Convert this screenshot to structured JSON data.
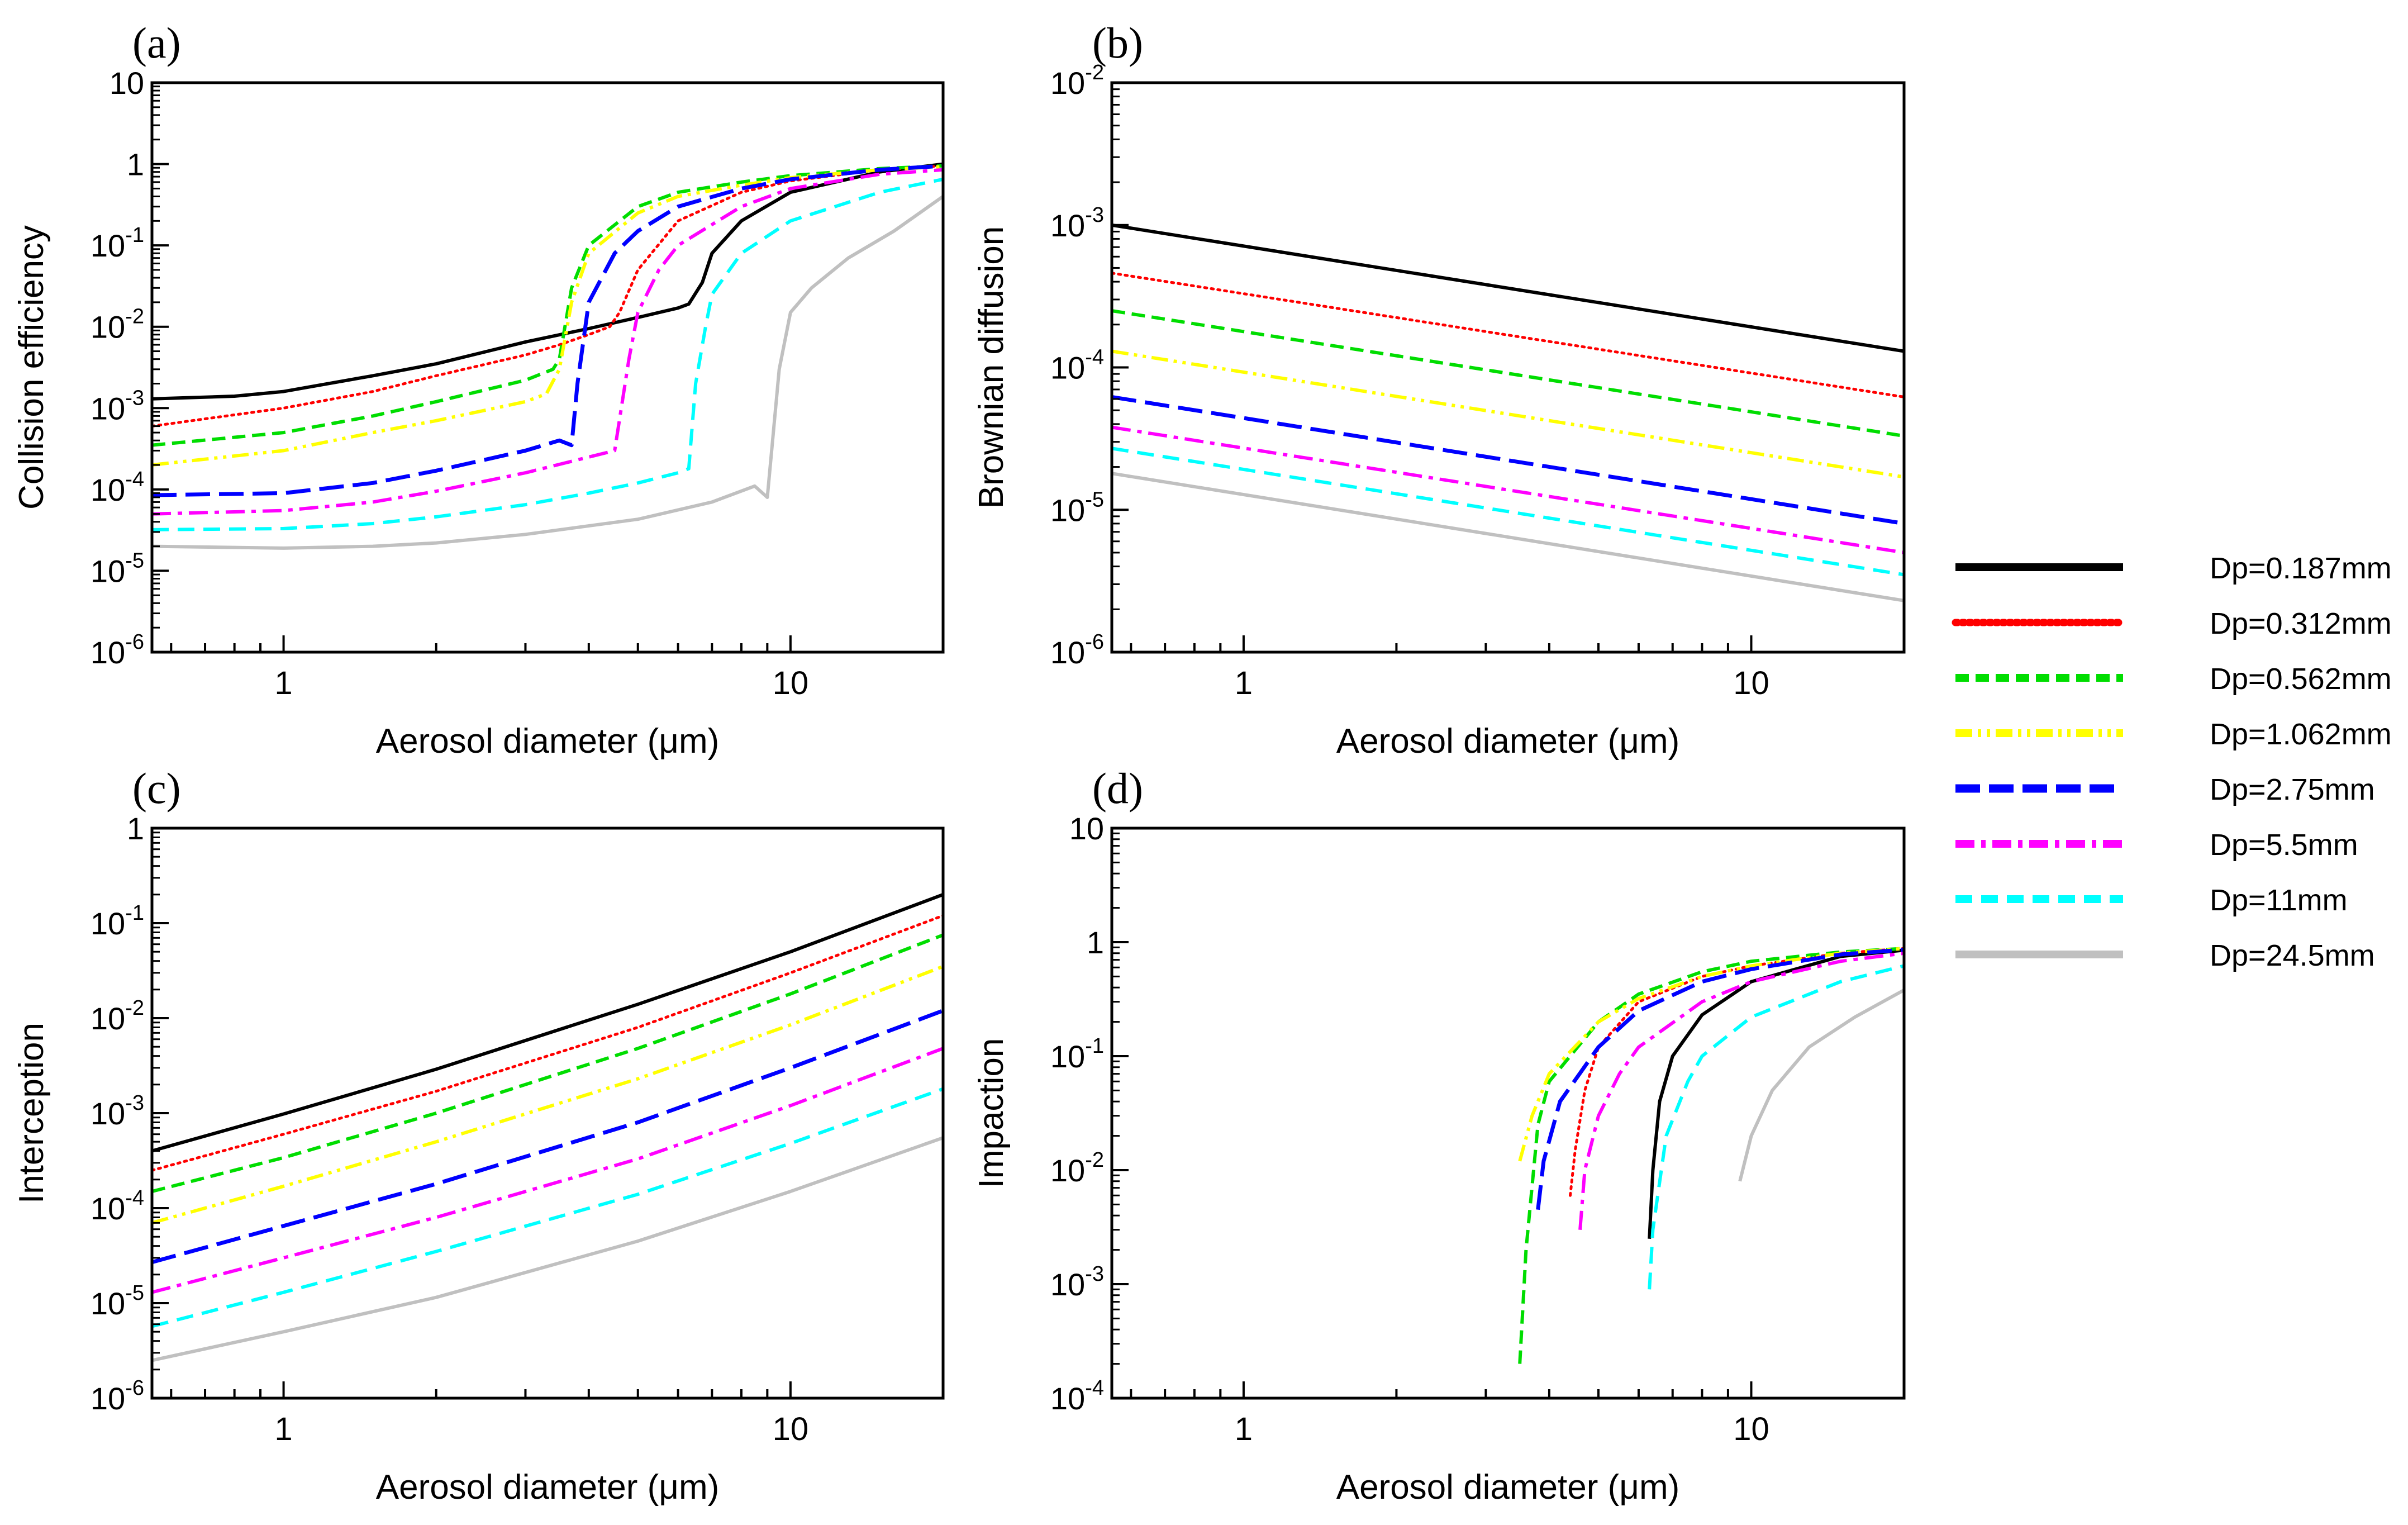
{
  "figure": {
    "x_axis_label": "Aerosol diameter (μm)",
    "x_tick_labels": [
      "1",
      "10"
    ],
    "x_range": [
      0.55,
      20
    ]
  },
  "legend": [
    {
      "label": "Dp=0.187mm",
      "color": "#000000",
      "style": "solid"
    },
    {
      "label": "Dp=0.312mm",
      "color": "#ff0000",
      "style": "dotted"
    },
    {
      "label": "Dp=0.562mm",
      "color": "#00dd00",
      "style": "dashed"
    },
    {
      "label": "Dp=1.062mm",
      "color": "#ffff00",
      "style": "dashdotdot"
    },
    {
      "label": "Dp=2.75mm",
      "color": "#0000ff",
      "style": "longdash"
    },
    {
      "label": "Dp=5.5mm",
      "color": "#ff00ff",
      "style": "dashdot"
    },
    {
      "label": "Dp=11mm",
      "color": "#00ffff",
      "style": "medium-dash"
    },
    {
      "label": "Dp=24.5mm",
      "color": "#c0c0c0",
      "style": "solid"
    }
  ],
  "chart_data": [
    {
      "panel_label": "(a)",
      "type": "line",
      "xscale": "log",
      "yscale": "log",
      "xlim": [
        0.55,
        20
      ],
      "ylim": [
        1e-06,
        10
      ],
      "xlabel": "Aerosol diameter (μm)",
      "ylabel": "Collision efficiency",
      "y_ticks": [
        {
          "base": "10",
          "exp": "-6"
        },
        {
          "base": "10",
          "exp": "-5"
        },
        {
          "base": "10",
          "exp": "-4"
        },
        {
          "base": "10",
          "exp": "-3"
        },
        {
          "base": "10",
          "exp": "-2"
        },
        {
          "base": "10",
          "exp": "-1"
        },
        {
          "base": "1",
          "exp": ""
        },
        {
          "base": "10",
          "exp": ""
        }
      ],
      "series": [
        {
          "name": "Dp=0.187mm",
          "x": [
            0.55,
            0.8,
            1,
            1.5,
            2,
            3,
            4,
            5,
            6,
            6.3,
            6.7,
            7,
            8,
            10,
            15,
            20
          ],
          "y": [
            0.0013,
            0.0014,
            0.0016,
            0.0025,
            0.0035,
            0.0065,
            0.0095,
            0.013,
            0.017,
            0.019,
            0.035,
            0.08,
            0.2,
            0.45,
            0.8,
            1.0
          ]
        },
        {
          "name": "Dp=0.312mm",
          "x": [
            0.55,
            1,
            1.5,
            2,
            3,
            3.5,
            4,
            4.4,
            4.6,
            5,
            6,
            8,
            10,
            15,
            20
          ],
          "y": [
            0.0006,
            0.001,
            0.0016,
            0.0025,
            0.0045,
            0.006,
            0.008,
            0.01,
            0.015,
            0.05,
            0.2,
            0.45,
            0.62,
            0.85,
            0.95
          ]
        },
        {
          "name": "Dp=0.562mm",
          "x": [
            0.55,
            1,
            1.5,
            2,
            3,
            3.4,
            3.5,
            3.7,
            4,
            5,
            6,
            8,
            10,
            15,
            20
          ],
          "y": [
            0.00035,
            0.0005,
            0.0008,
            0.0012,
            0.0022,
            0.003,
            0.004,
            0.03,
            0.1,
            0.3,
            0.45,
            0.6,
            0.72,
            0.88,
            0.95
          ]
        },
        {
          "name": "Dp=1.062mm",
          "x": [
            0.55,
            1,
            1.5,
            2,
            3,
            3.3,
            3.5,
            3.7,
            4,
            5,
            6,
            8,
            10,
            15,
            20
          ],
          "y": [
            0.0002,
            0.0003,
            0.0005,
            0.0007,
            0.0012,
            0.0015,
            0.003,
            0.02,
            0.08,
            0.25,
            0.4,
            0.55,
            0.68,
            0.85,
            0.93
          ]
        },
        {
          "name": "Dp=2.75mm",
          "x": [
            0.55,
            1,
            1.5,
            2,
            3,
            3.5,
            3.7,
            3.8,
            4,
            4.5,
            5,
            6,
            8,
            10,
            15,
            20
          ],
          "y": [
            8.5e-05,
            9e-05,
            0.00012,
            0.00017,
            0.0003,
            0.0004,
            0.00035,
            0.002,
            0.02,
            0.08,
            0.15,
            0.3,
            0.5,
            0.65,
            0.85,
            0.95
          ]
        },
        {
          "name": "Dp=5.5mm",
          "x": [
            0.55,
            1,
            1.5,
            2,
            3,
            4,
            4.5,
            4.8,
            5,
            5.5,
            6,
            8,
            10,
            15,
            20
          ],
          "y": [
            5e-05,
            5.5e-05,
            7e-05,
            9.5e-05,
            0.00016,
            0.00025,
            0.0003,
            0.004,
            0.015,
            0.05,
            0.1,
            0.3,
            0.5,
            0.75,
            0.85
          ]
        },
        {
          "name": "Dp=11mm",
          "x": [
            0.55,
            1,
            1.5,
            2,
            3,
            4,
            5,
            6,
            6.3,
            6.5,
            6.8,
            7,
            8,
            10,
            15,
            20
          ],
          "y": [
            3.2e-05,
            3.3e-05,
            3.8e-05,
            4.6e-05,
            6.5e-05,
            9e-05,
            0.00012,
            0.00016,
            0.00018,
            0.002,
            0.01,
            0.025,
            0.08,
            0.2,
            0.45,
            0.65
          ]
        },
        {
          "name": "Dp=24.5mm",
          "x": [
            0.55,
            1,
            1.5,
            2,
            3,
            5,
            7,
            8.5,
            9,
            9.5,
            10,
            11,
            13,
            16,
            20
          ],
          "y": [
            2e-05,
            1.9e-05,
            2e-05,
            2.2e-05,
            2.8e-05,
            4.3e-05,
            7e-05,
            0.00011,
            8e-05,
            0.003,
            0.015,
            0.03,
            0.07,
            0.15,
            0.4
          ]
        }
      ]
    },
    {
      "panel_label": "(b)",
      "type": "line",
      "xscale": "log",
      "yscale": "log",
      "xlim": [
        0.55,
        20
      ],
      "ylim": [
        1e-06,
        0.01
      ],
      "xlabel": "Aerosol diameter (μm)",
      "ylabel": "Brownian diffusion",
      "y_ticks": [
        {
          "base": "10",
          "exp": "-6"
        },
        {
          "base": "10",
          "exp": "-5"
        },
        {
          "base": "10",
          "exp": "-4"
        },
        {
          "base": "10",
          "exp": "-3"
        },
        {
          "base": "10",
          "exp": "-2"
        }
      ],
      "series": [
        {
          "name": "Dp=0.187mm",
          "x": [
            0.55,
            20
          ],
          "y": [
            0.001,
            0.00013
          ]
        },
        {
          "name": "Dp=0.312mm",
          "x": [
            0.55,
            20
          ],
          "y": [
            0.00046,
            6.2e-05
          ]
        },
        {
          "name": "Dp=0.562mm",
          "x": [
            0.55,
            20
          ],
          "y": [
            0.00025,
            3.3e-05
          ]
        },
        {
          "name": "Dp=1.062mm",
          "x": [
            0.55,
            20
          ],
          "y": [
            0.00013,
            1.7e-05
          ]
        },
        {
          "name": "Dp=2.75mm",
          "x": [
            0.55,
            20
          ],
          "y": [
            6.2e-05,
            8e-06
          ]
        },
        {
          "name": "Dp=5.5mm",
          "x": [
            0.55,
            20
          ],
          "y": [
            3.8e-05,
            5e-06
          ]
        },
        {
          "name": "Dp=11mm",
          "x": [
            0.55,
            20
          ],
          "y": [
            2.7e-05,
            3.5e-06
          ]
        },
        {
          "name": "Dp=24.5mm",
          "x": [
            0.55,
            20
          ],
          "y": [
            1.8e-05,
            2.3e-06
          ]
        }
      ]
    },
    {
      "panel_label": "(c)",
      "type": "line",
      "xscale": "log",
      "yscale": "log",
      "xlim": [
        0.55,
        20
      ],
      "ylim": [
        1e-06,
        1
      ],
      "xlabel": "Aerosol diameter (μm)",
      "ylabel": "Interception",
      "y_ticks": [
        {
          "base": "10",
          "exp": "-6"
        },
        {
          "base": "10",
          "exp": "-5"
        },
        {
          "base": "10",
          "exp": "-4"
        },
        {
          "base": "10",
          "exp": "-3"
        },
        {
          "base": "10",
          "exp": "-2"
        },
        {
          "base": "10",
          "exp": "-1"
        },
        {
          "base": "1",
          "exp": ""
        }
      ],
      "series": [
        {
          "name": "Dp=0.187mm",
          "x": [
            0.55,
            1,
            2,
            5,
            10,
            20
          ],
          "y": [
            0.0004,
            0.00098,
            0.0029,
            0.014,
            0.05,
            0.2
          ]
        },
        {
          "name": "Dp=0.312mm",
          "x": [
            0.55,
            1,
            2,
            5,
            10,
            20
          ],
          "y": [
            0.00025,
            0.0006,
            0.0017,
            0.008,
            0.03,
            0.12
          ]
        },
        {
          "name": "Dp=0.562mm",
          "x": [
            0.55,
            1,
            2,
            5,
            10,
            20
          ],
          "y": [
            0.00015,
            0.00034,
            0.001,
            0.0048,
            0.018,
            0.075
          ]
        },
        {
          "name": "Dp=1.062mm",
          "x": [
            0.55,
            1,
            2,
            5,
            10,
            20
          ],
          "y": [
            7e-05,
            0.00017,
            0.0005,
            0.0023,
            0.0085,
            0.035
          ]
        },
        {
          "name": "Dp=2.75mm",
          "x": [
            0.55,
            1,
            2,
            5,
            10,
            20
          ],
          "y": [
            2.7e-05,
            6.5e-05,
            0.00018,
            0.0008,
            0.003,
            0.012
          ]
        },
        {
          "name": "Dp=5.5mm",
          "x": [
            0.55,
            1,
            2,
            5,
            10,
            20
          ],
          "y": [
            1.3e-05,
            3e-05,
            8e-05,
            0.00033,
            0.0012,
            0.0048
          ]
        },
        {
          "name": "Dp=11mm",
          "x": [
            0.55,
            1,
            2,
            5,
            10,
            20
          ],
          "y": [
            5.7e-06,
            1.3e-05,
            3.5e-05,
            0.00014,
            0.00048,
            0.0018
          ]
        },
        {
          "name": "Dp=24.5mm",
          "x": [
            0.55,
            1,
            2,
            5,
            10,
            20
          ],
          "y": [
            2.5e-06,
            5e-06,
            1.15e-05,
            4.5e-05,
            0.00015,
            0.00055
          ]
        }
      ]
    },
    {
      "panel_label": "(d)",
      "type": "line",
      "xscale": "log",
      "yscale": "log",
      "xlim": [
        0.55,
        20
      ],
      "ylim": [
        0.0001,
        10
      ],
      "xlabel": "Aerosol diameter (μm)",
      "ylabel": "Impaction",
      "y_ticks": [
        {
          "base": "10",
          "exp": "-4"
        },
        {
          "base": "10",
          "exp": "-3"
        },
        {
          "base": "10",
          "exp": "-2"
        },
        {
          "base": "10",
          "exp": "-1"
        },
        {
          "base": "1",
          "exp": ""
        },
        {
          "base": "10",
          "exp": ""
        }
      ],
      "series": [
        {
          "name": "Dp=0.187mm",
          "x": [
            6.3,
            6.4,
            6.6,
            7,
            8,
            10,
            15,
            20
          ],
          "y": [
            0.0025,
            0.01,
            0.04,
            0.1,
            0.23,
            0.45,
            0.75,
            0.85
          ]
        },
        {
          "name": "Dp=0.312mm",
          "x": [
            4.4,
            4.5,
            4.7,
            5,
            6,
            8,
            10,
            15,
            20
          ],
          "y": [
            0.006,
            0.015,
            0.05,
            0.12,
            0.3,
            0.5,
            0.62,
            0.8,
            0.88
          ]
        },
        {
          "name": "Dp=0.562mm",
          "x": [
            3.5,
            3.6,
            3.8,
            4,
            5,
            6,
            8,
            10,
            15,
            20
          ],
          "y": [
            0.0002,
            0.002,
            0.025,
            0.06,
            0.2,
            0.35,
            0.55,
            0.68,
            0.82,
            0.88
          ]
        },
        {
          "name": "Dp=1.062mm",
          "x": [
            3.5,
            3.7,
            4,
            5,
            6,
            8,
            10,
            15,
            20
          ],
          "y": [
            0.012,
            0.03,
            0.07,
            0.2,
            0.32,
            0.5,
            0.62,
            0.8,
            0.88
          ]
        },
        {
          "name": "Dp=2.75mm",
          "x": [
            3.8,
            3.9,
            4.2,
            5,
            6,
            8,
            10,
            15,
            20
          ],
          "y": [
            0.0045,
            0.012,
            0.04,
            0.12,
            0.25,
            0.45,
            0.58,
            0.78,
            0.86
          ]
        },
        {
          "name": "Dp=5.5mm",
          "x": [
            4.6,
            4.7,
            5,
            5.5,
            6,
            8,
            10,
            15,
            20
          ],
          "y": [
            0.003,
            0.01,
            0.03,
            0.07,
            0.12,
            0.3,
            0.45,
            0.68,
            0.8
          ]
        },
        {
          "name": "Dp=11mm",
          "x": [
            6.3,
            6.4,
            6.8,
            7.5,
            8,
            10,
            15,
            20
          ],
          "y": [
            0.0009,
            0.003,
            0.02,
            0.06,
            0.1,
            0.22,
            0.45,
            0.62
          ]
        },
        {
          "name": "Dp=24.5mm",
          "x": [
            9.5,
            10,
            11,
            13,
            16,
            20
          ],
          "y": [
            0.008,
            0.02,
            0.05,
            0.12,
            0.22,
            0.38
          ]
        }
      ]
    }
  ]
}
